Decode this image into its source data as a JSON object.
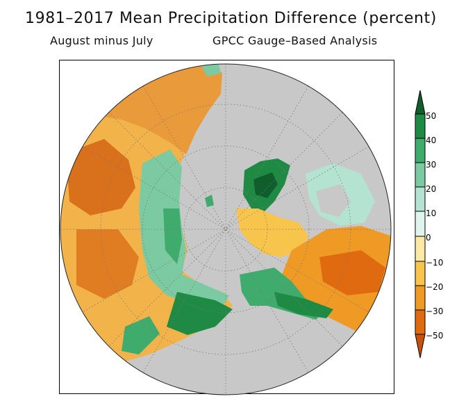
{
  "title": "1981–2017 Mean Precipitation Difference (percent)",
  "subtitle_left": "August minus July",
  "subtitle_right": "GPCC Gauge–Based Analysis",
  "colorbar": {
    "labels": [
      "50",
      "40",
      "30",
      "20",
      "10",
      "0",
      "−10",
      "−20",
      "−30",
      "−50"
    ],
    "colors": [
      "#0f5e2b",
      "#1f8a44",
      "#3fab6c",
      "#7ccaa2",
      "#b4e3d2",
      "#e0f3ee",
      "#fde9a6",
      "#f7c44c",
      "#f09a26",
      "#e06a10",
      "#c9520a"
    ]
  },
  "map": {
    "ocean_color": "#c8c8c8",
    "projection": "north-polar-stereographic"
  }
}
